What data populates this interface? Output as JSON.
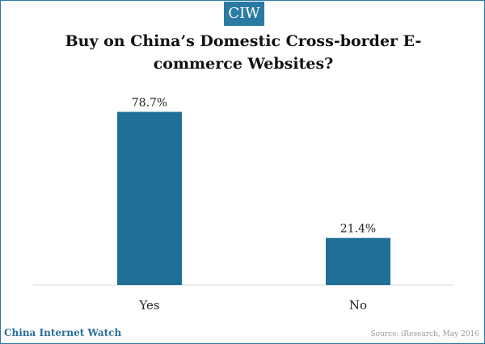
{
  "badge": "CIW",
  "footer": {
    "brand": "China Internet Watch",
    "source": "Source: iResearch, May 2016"
  },
  "colors": {
    "bar": "#1f6f97",
    "accent": "#2b7aa3"
  },
  "chart_data": {
    "type": "bar",
    "title": "Buy on China’s Domestic Cross-border E-commerce Websites?",
    "categories": [
      "Yes",
      "No"
    ],
    "values": [
      78.7,
      21.4
    ],
    "data_labels": [
      "78.7%",
      "21.4%"
    ],
    "xlabel": "",
    "ylabel": "",
    "ylim": [
      0,
      80
    ],
    "grid": false,
    "legend": "none"
  }
}
